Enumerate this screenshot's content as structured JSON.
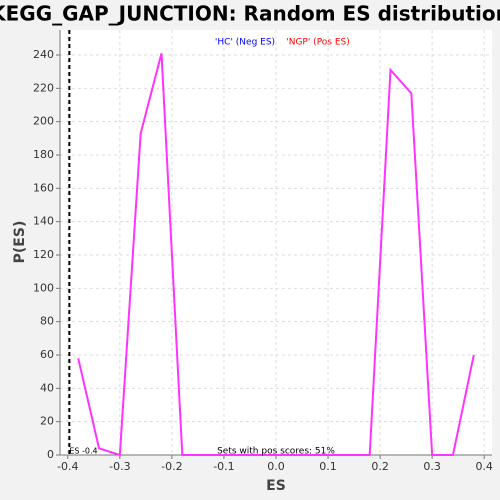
{
  "chart_data": {
    "type": "line",
    "title": "KEGG_GAP_JUNCTION: Random ES distribution",
    "xlabel": "ES",
    "ylabel": "P(ES)",
    "x": [
      -0.38,
      -0.34,
      -0.3,
      -0.26,
      -0.22,
      -0.18,
      -0.14,
      -0.1,
      -0.06,
      -0.02,
      0.02,
      0.06,
      0.1,
      0.14,
      0.18,
      0.22,
      0.26,
      0.3,
      0.34,
      0.38
    ],
    "values": [
      58,
      4,
      0,
      193,
      241,
      0,
      0,
      0,
      0,
      0,
      0,
      0,
      0,
      0,
      0,
      231,
      217,
      0,
      0,
      60
    ],
    "color": "#ff33ff",
    "xlim": [
      -0.415,
      0.415
    ],
    "ylim": [
      0,
      255
    ],
    "xticks": [
      -0.4,
      -0.3,
      -0.2,
      -0.1,
      {
        "value": 0,
        "label": "0.0"
      },
      0.1,
      0.2,
      0.3,
      0.4
    ],
    "yticks": [
      0,
      20,
      40,
      60,
      80,
      100,
      120,
      140,
      160,
      180,
      200,
      220,
      240
    ],
    "grid": true,
    "vline": {
      "value": -0.397,
      "label": "ES -0.4"
    },
    "annotations": [
      {
        "text": "'HC' (Neg ES)",
        "color": "#0000ff"
      },
      {
        "text": "'NGP' (Pos ES)",
        "color": "#ff0000"
      },
      {
        "text": "Sets with pos scores: 51%",
        "color": "#000000"
      }
    ]
  }
}
